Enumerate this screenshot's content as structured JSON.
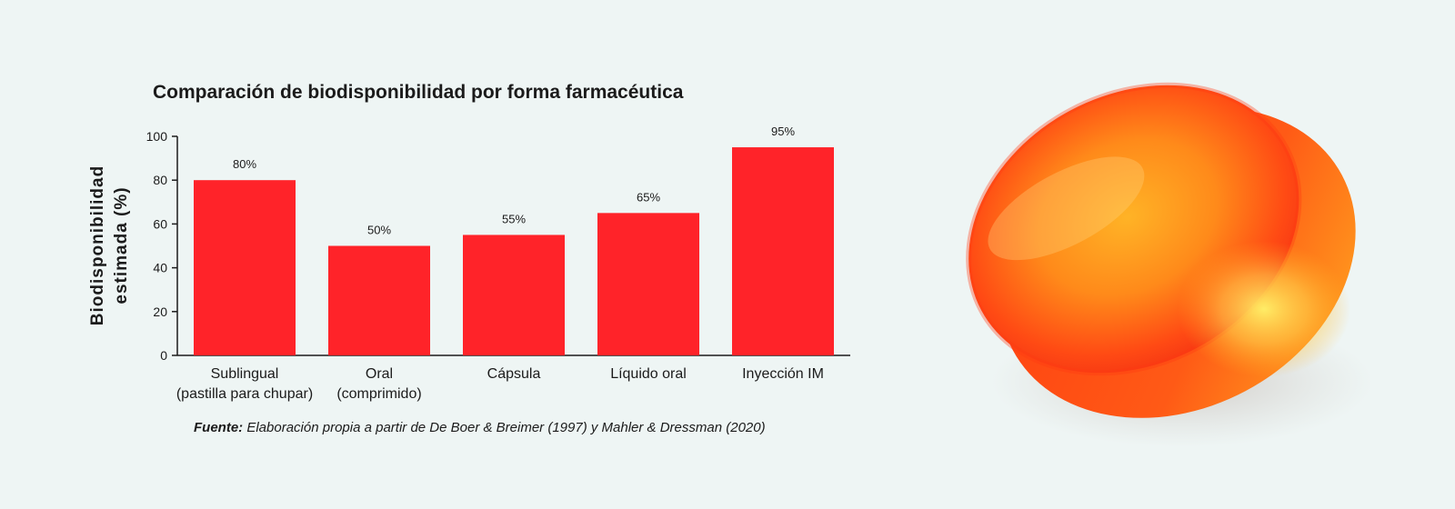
{
  "chart_data": {
    "type": "bar",
    "title": "Comparación de biodisponibilidad por forma farmacéutica",
    "ylabel": [
      "Biodisponibilidad",
      "estimada (%)"
    ],
    "xlabel": "",
    "ylim": [
      0,
      100
    ],
    "yticks": [
      0,
      20,
      40,
      60,
      80,
      100
    ],
    "categories": [
      [
        "Sublingual",
        "(pastilla para chupar)"
      ],
      [
        "Oral",
        "(comprimido)"
      ],
      [
        "Cápsula"
      ],
      [
        "Líquido oral"
      ],
      [
        "Inyección IM"
      ]
    ],
    "values": [
      80,
      50,
      55,
      65,
      95
    ],
    "value_labels": [
      "80%",
      "50%",
      "55%",
      "65%",
      "95%"
    ],
    "bar_color": "#ff2329",
    "grid": false,
    "legend": "none"
  },
  "source": {
    "lead": "Fuente:",
    "text": " Elaboración propia a partir de De Boer & Breimer (1997) y Mahler & Dressman (2020)"
  },
  "photo": {
    "icon": "orange-lozenge-icon"
  },
  "colors": {
    "background": "#eef5f4",
    "lozenge": "#ff4a14"
  }
}
